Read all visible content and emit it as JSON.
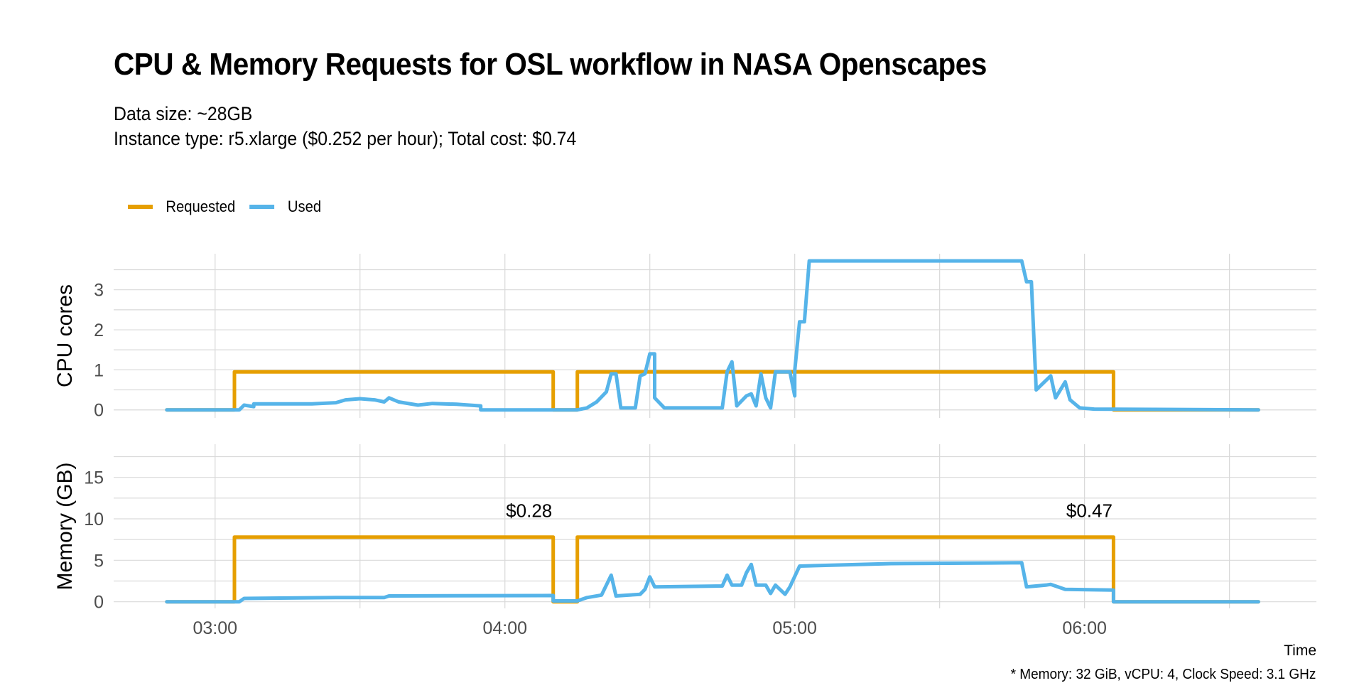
{
  "title": "CPU & Memory Requests for OSL workflow in NASA Openscapes",
  "subtitle_lines": [
    "Data size: ~28GB",
    "Instance type: r5.xlarge ($0.252 per hour); Total cost: $0.74"
  ],
  "caption": "* Memory: 32 GiB, vCPU: 4, Clock Speed: 3.1 GHz",
  "colors": {
    "requested": "#E69F00",
    "used": "#56B4E9",
    "grid": "#d9d9d9",
    "axis_text": "#4d4d4d"
  },
  "chart_data": {
    "type": "line",
    "legend": {
      "position": "top-left",
      "entries": [
        "Requested",
        "Used"
      ]
    },
    "x_axis": {
      "label": "Time",
      "range": [
        "02:39",
        "06:48"
      ],
      "ticks": [
        "03:00",
        "04:00",
        "05:00",
        "06:00"
      ]
    },
    "grid": true,
    "panels": [
      {
        "name": "cpu",
        "ylabel": "CPU cores",
        "ylim": [
          -0.2,
          3.9
        ],
        "yticks": [
          0,
          1,
          2,
          3
        ],
        "series": [
          {
            "name": "Requested",
            "points": [
              [
                "02:50",
                0
              ],
              [
                "03:04",
                0
              ],
              [
                "03:04",
                0.95
              ],
              [
                "04:10",
                0.95
              ],
              [
                "04:10",
                0
              ],
              [
                "04:15",
                0
              ],
              [
                "04:15",
                0.95
              ],
              [
                "06:06",
                0.95
              ],
              [
                "06:06",
                0
              ],
              [
                "06:36",
                0
              ]
            ]
          },
          {
            "name": "Used",
            "points": [
              [
                "02:50",
                0
              ],
              [
                "03:05",
                0
              ],
              [
                "03:06",
                0.12
              ],
              [
                "03:08",
                0.08
              ],
              [
                "03:08",
                0.15
              ],
              [
                "03:20",
                0.15
              ],
              [
                "03:25",
                0.18
              ],
              [
                "03:27",
                0.25
              ],
              [
                "03:30",
                0.28
              ],
              [
                "03:33",
                0.25
              ],
              [
                "03:35",
                0.2
              ],
              [
                "03:36",
                0.3
              ],
              [
                "03:38",
                0.2
              ],
              [
                "03:42",
                0.12
              ],
              [
                "03:45",
                0.16
              ],
              [
                "03:50",
                0.14
              ],
              [
                "03:55",
                0.1
              ],
              [
                "03:55",
                0
              ],
              [
                "04:15",
                0
              ],
              [
                "04:17",
                0.05
              ],
              [
                "04:19",
                0.2
              ],
              [
                "04:21",
                0.45
              ],
              [
                "04:22",
                0.9
              ],
              [
                "04:23",
                0.9
              ],
              [
                "04:24",
                0.05
              ],
              [
                "04:27",
                0.05
              ],
              [
                "04:28",
                0.85
              ],
              [
                "04:29",
                0.9
              ],
              [
                "04:30",
                1.4
              ],
              [
                "04:31",
                1.4
              ],
              [
                "04:31",
                0.3
              ],
              [
                "04:33",
                0.05
              ],
              [
                "04:45",
                0.05
              ],
              [
                "04:46",
                0.95
              ],
              [
                "04:47",
                1.2
              ],
              [
                "04:48",
                0.1
              ],
              [
                "04:50",
                0.35
              ],
              [
                "04:51",
                0.4
              ],
              [
                "04:52",
                0.1
              ],
              [
                "04:53",
                0.9
              ],
              [
                "04:54",
                0.3
              ],
              [
                "04:55",
                0.05
              ],
              [
                "04:56",
                0.95
              ],
              [
                "04:59",
                0.95
              ],
              [
                "05:00",
                0.35
              ],
              [
                "05:00",
                0.98
              ],
              [
                "05:01",
                2.2
              ],
              [
                "05:02",
                2.2
              ],
              [
                "05:03",
                3.72
              ],
              [
                "05:47",
                3.72
              ],
              [
                "05:48",
                3.2
              ],
              [
                "05:49",
                3.2
              ],
              [
                "05:50",
                0.5
              ],
              [
                "05:53",
                0.85
              ],
              [
                "05:54",
                0.3
              ],
              [
                "05:56",
                0.7
              ],
              [
                "05:57",
                0.25
              ],
              [
                "05:59",
                0.05
              ],
              [
                "06:02",
                0.02
              ],
              [
                "06:36",
                0
              ]
            ]
          }
        ]
      },
      {
        "name": "memory",
        "ylabel": "Memory (GB)",
        "ylim": [
          -0.8,
          19
        ],
        "yticks": [
          0,
          5,
          10,
          15
        ],
        "series": [
          {
            "name": "Requested",
            "points": [
              [
                "02:50",
                0
              ],
              [
                "03:04",
                0
              ],
              [
                "03:04",
                7.8
              ],
              [
                "04:10",
                7.8
              ],
              [
                "04:10",
                0
              ],
              [
                "04:15",
                0
              ],
              [
                "04:15",
                7.8
              ],
              [
                "06:06",
                7.8
              ],
              [
                "06:06",
                0
              ],
              [
                "06:36",
                0
              ]
            ]
          },
          {
            "name": "Used",
            "points": [
              [
                "02:50",
                0
              ],
              [
                "03:05",
                0
              ],
              [
                "03:06",
                0.4
              ],
              [
                "03:25",
                0.5
              ],
              [
                "03:35",
                0.5
              ],
              [
                "03:36",
                0.7
              ],
              [
                "04:10",
                0.75
              ],
              [
                "04:10",
                0.1
              ],
              [
                "04:15",
                0.1
              ],
              [
                "04:17",
                0.5
              ],
              [
                "04:20",
                0.8
              ],
              [
                "04:21",
                2
              ],
              [
                "04:22",
                3.2
              ],
              [
                "04:23",
                0.7
              ],
              [
                "04:28",
                0.9
              ],
              [
                "04:29",
                1.5
              ],
              [
                "04:30",
                3
              ],
              [
                "04:31",
                1.8
              ],
              [
                "04:45",
                1.9
              ],
              [
                "04:46",
                3.2
              ],
              [
                "04:47",
                2
              ],
              [
                "04:49",
                2
              ],
              [
                "04:50",
                3.5
              ],
              [
                "04:51",
                4.5
              ],
              [
                "04:52",
                2
              ],
              [
                "04:54",
                2
              ],
              [
                "04:55",
                1
              ],
              [
                "04:56",
                2
              ],
              [
                "04:58",
                0.9
              ],
              [
                "04:59",
                1.8
              ],
              [
                "05:01",
                4.3
              ],
              [
                "05:20",
                4.6
              ],
              [
                "05:47",
                4.7
              ],
              [
                "05:48",
                1.8
              ],
              [
                "05:52",
                2
              ],
              [
                "05:53",
                2.1
              ],
              [
                "05:56",
                1.5
              ],
              [
                "06:06",
                1.4
              ],
              [
                "06:06",
                0
              ],
              [
                "06:36",
                0
              ]
            ]
          }
        ],
        "annotations": [
          {
            "text": "$0.28",
            "x": "04:05",
            "y": 10.2
          },
          {
            "text": "$0.47",
            "x": "06:01",
            "y": 10.2
          }
        ]
      }
    ]
  }
}
